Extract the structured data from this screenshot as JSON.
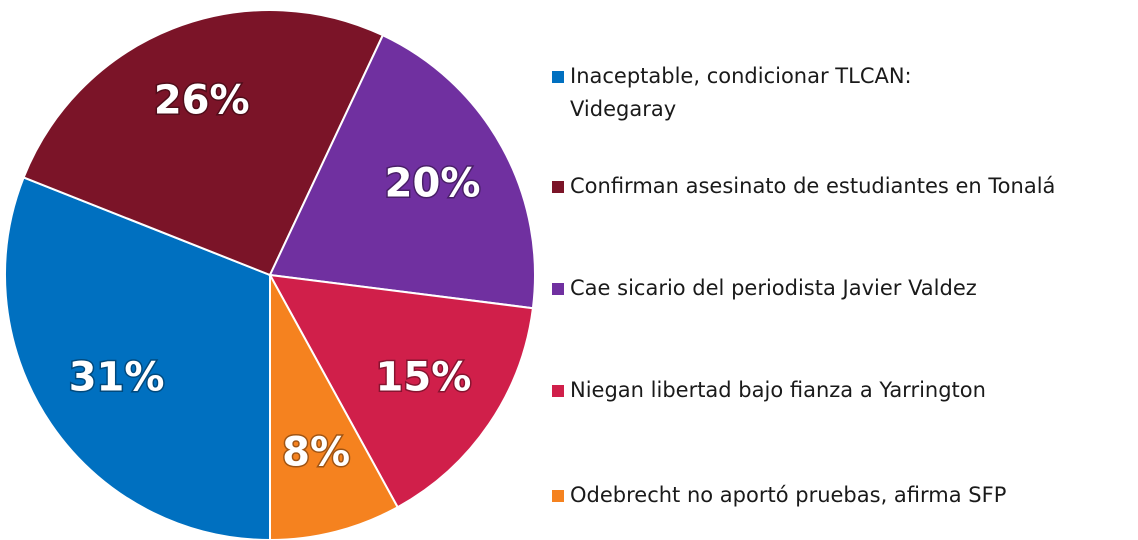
{
  "chart_data": {
    "type": "pie",
    "categories": [
      "Inaceptable, condicionar TLCAN: Videgaray",
      "Confirman asesinato de estudiantes en Tonalá",
      "Cae sicario del periodista Javier Valdez",
      "Niegan libertad bajo fianza a Yarrington",
      "Odebrecht no aportó pruebas, afirma SFP"
    ],
    "values": [
      31,
      26,
      20,
      15,
      8
    ],
    "value_labels": [
      "31%",
      "26%",
      "20%",
      "15%",
      "8%"
    ],
    "colors": [
      "#0070c0",
      "#7b1428",
      "#7030a0",
      "#d01f4a",
      "#f5821f"
    ],
    "legend": "right"
  }
}
